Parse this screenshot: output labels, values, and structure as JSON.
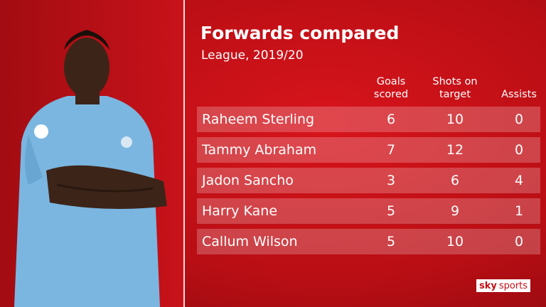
{
  "header": {
    "title": "Forwards compared",
    "subtitle": "League, 2019/20"
  },
  "table": {
    "columns": [
      "Goals scored",
      "Shots on target",
      "Assists"
    ],
    "rows": [
      [
        "Raheem Sterling",
        6,
        10,
        0
      ],
      [
        "Tammy Abraham",
        7,
        12,
        0
      ],
      [
        "Jadon Sancho",
        3,
        6,
        4
      ],
      [
        "Harry Kane",
        5,
        9,
        1
      ],
      [
        "Callum Wilson",
        5,
        10,
        0
      ]
    ]
  },
  "logo": {
    "brand": "sky",
    "product": "sports"
  }
}
